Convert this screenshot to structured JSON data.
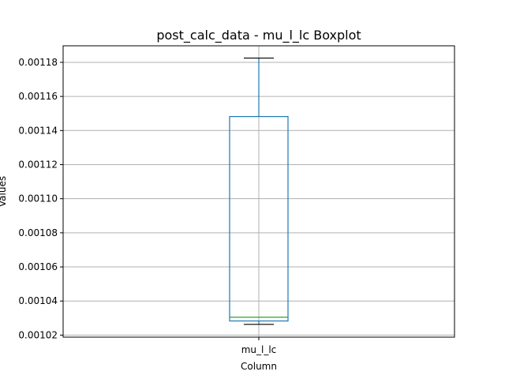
{
  "chart_data": {
    "type": "boxplot",
    "title": "post_calc_data - mu_l_lc Boxplot",
    "xlabel": "Column",
    "ylabel": "Values",
    "categories": [
      "mu_l_lc"
    ],
    "boxes": [
      {
        "name": "mu_l_lc",
        "whisker_low": 0.0010263,
        "q1": 0.0010283,
        "median": 0.0010305,
        "q3": 0.0011482,
        "whisker_high": 0.0011825
      }
    ],
    "ylim": [
      0.0010188,
      0.0011897
    ],
    "yticks": [
      0.00102,
      0.00104,
      0.00106,
      0.00108,
      0.0011,
      0.00112,
      0.00114,
      0.00116,
      0.00118
    ],
    "ytick_labels": [
      "0.00102",
      "0.00104",
      "0.00106",
      "0.00108",
      "0.00110",
      "0.00112",
      "0.00114",
      "0.00116",
      "0.00118"
    ],
    "grid": true,
    "colors": {
      "box": "#1f77b4",
      "median": "#2ca02c",
      "whisker": "#1f77b4",
      "cap": "#000000",
      "grid": "#b0b0b0"
    }
  }
}
